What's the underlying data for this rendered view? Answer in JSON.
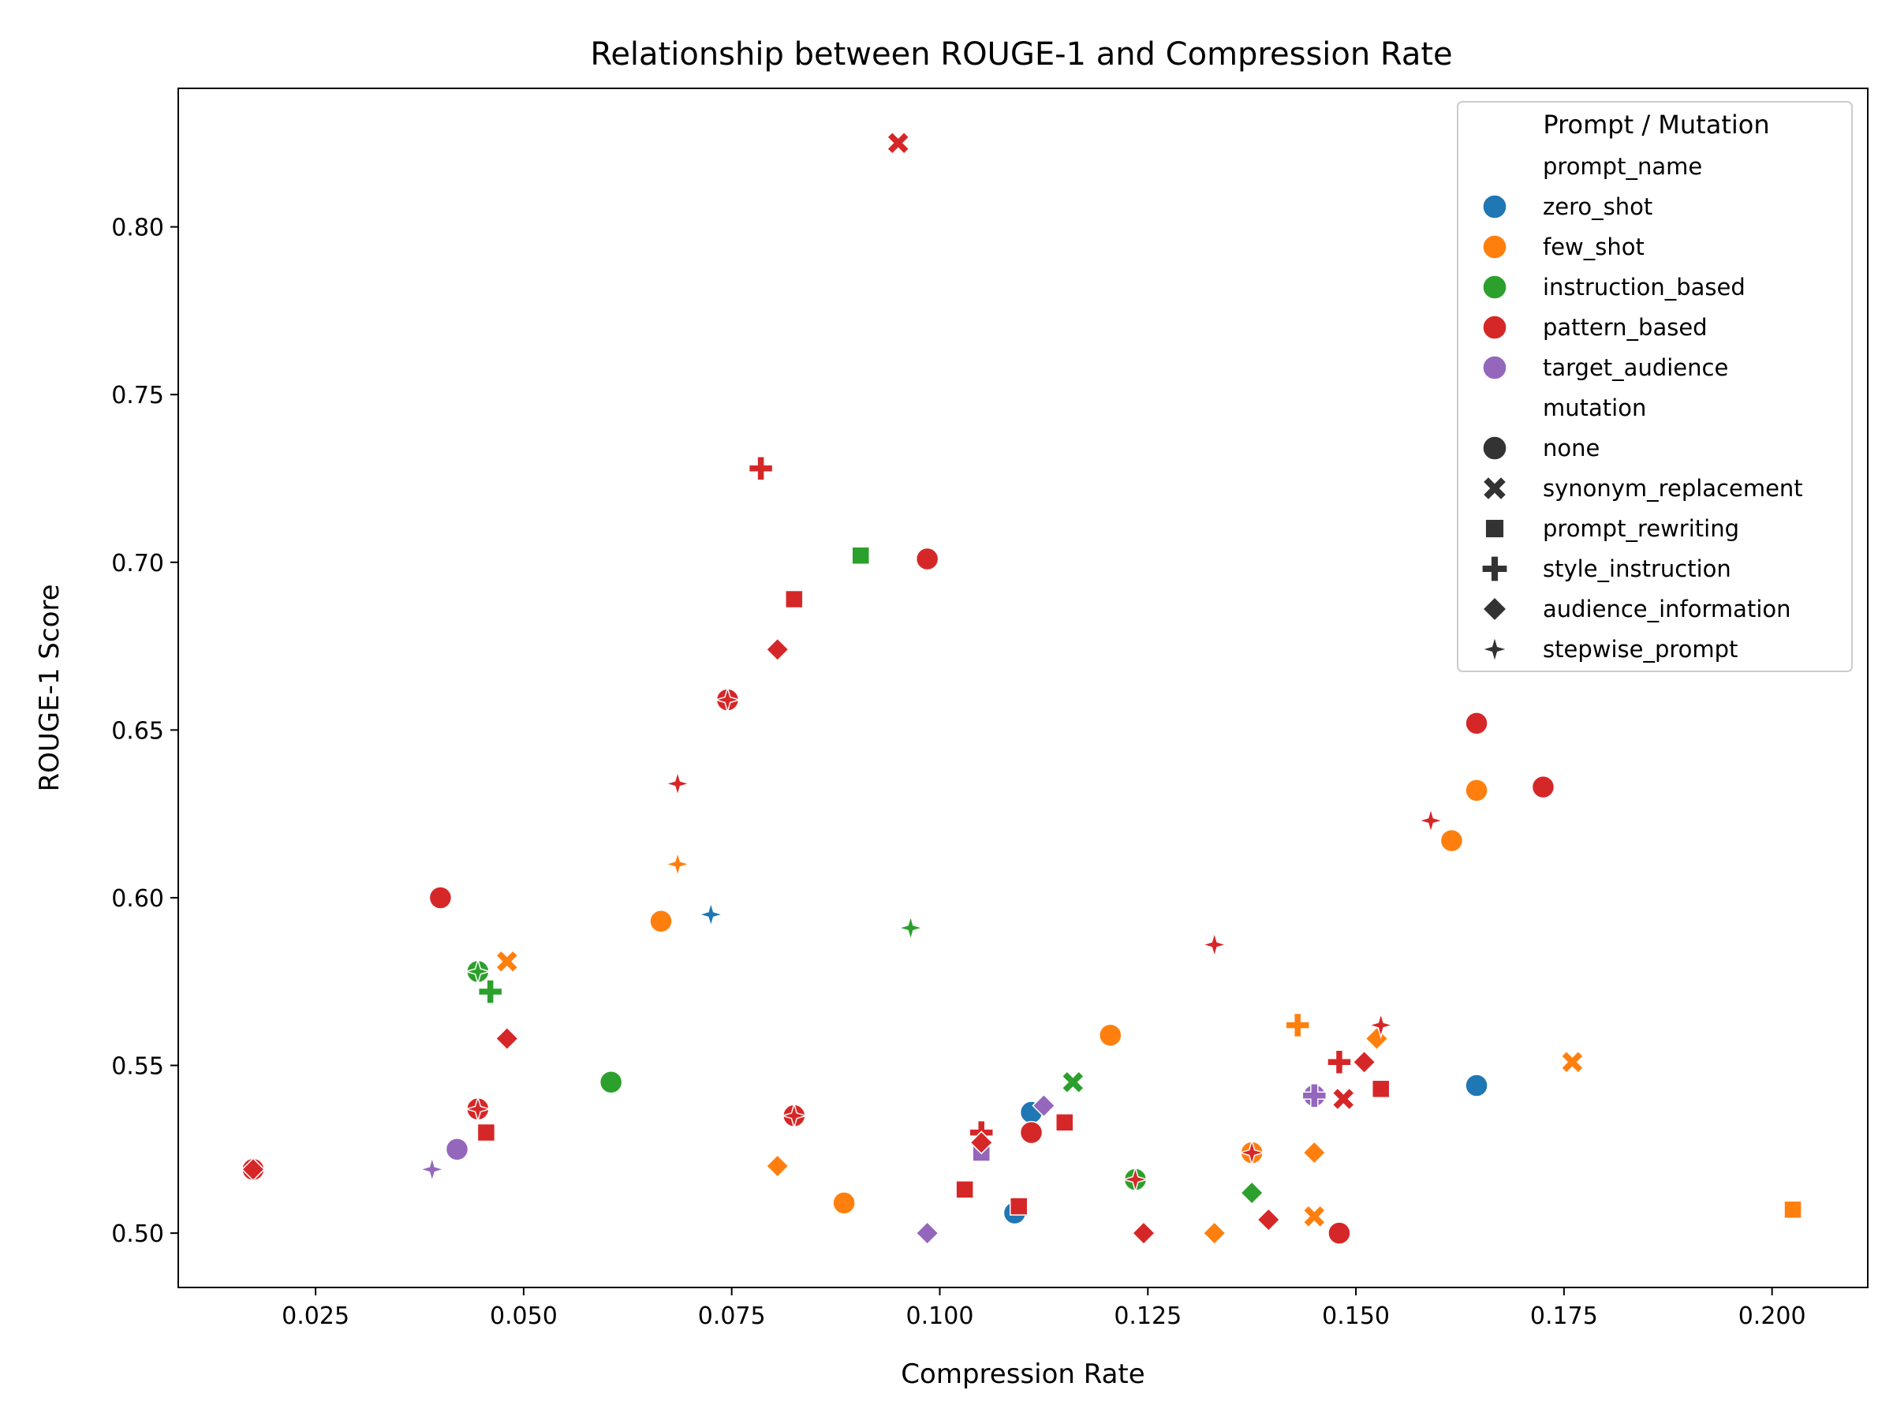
{
  "chart_data": {
    "type": "scatter",
    "title": "Relationship between ROUGE-1 and Compression Rate",
    "xlabel": "Compression Rate",
    "ylabel": "ROUGE-1 Score",
    "xlim": [
      0.0085,
      0.2115
    ],
    "ylim": [
      0.4838,
      0.8413
    ],
    "xticks": [
      "0.025",
      "0.050",
      "0.075",
      "0.100",
      "0.125",
      "0.150",
      "0.175",
      "0.200"
    ],
    "yticks": [
      "0.50",
      "0.55",
      "0.60",
      "0.65",
      "0.70",
      "0.75",
      "0.80"
    ],
    "grid": false,
    "legend_position": "upper right",
    "legend": {
      "title": "Prompt / Mutation",
      "hue_heading": "prompt_name",
      "hue_entries": [
        {
          "name": "zero_shot",
          "color": "#1f77b4"
        },
        {
          "name": "few_shot",
          "color": "#ff7f0e"
        },
        {
          "name": "instruction_based",
          "color": "#2ca02c"
        },
        {
          "name": "pattern_based",
          "color": "#d62728"
        },
        {
          "name": "target_audience",
          "color": "#9467bd"
        }
      ],
      "style_heading": "mutation",
      "style_entries": [
        {
          "name": "none",
          "marker": "circle"
        },
        {
          "name": "synonym_replacement",
          "marker": "x"
        },
        {
          "name": "prompt_rewriting",
          "marker": "square"
        },
        {
          "name": "style_instruction",
          "marker": "plus"
        },
        {
          "name": "audience_information",
          "marker": "diamond"
        },
        {
          "name": "stepwise_prompt",
          "marker": "star"
        }
      ]
    },
    "points": [
      {
        "x": 0.095,
        "y": 0.825,
        "prompt": "pattern_based",
        "mutation": "synonym_replacement"
      },
      {
        "x": 0.0785,
        "y": 0.728,
        "prompt": "pattern_based",
        "mutation": "style_instruction"
      },
      {
        "x": 0.0905,
        "y": 0.702,
        "prompt": "instruction_based",
        "mutation": "prompt_rewriting"
      },
      {
        "x": 0.0985,
        "y": 0.701,
        "prompt": "pattern_based",
        "mutation": "none"
      },
      {
        "x": 0.0825,
        "y": 0.689,
        "prompt": "pattern_based",
        "mutation": "prompt_rewriting"
      },
      {
        "x": 0.0805,
        "y": 0.674,
        "prompt": "pattern_based",
        "mutation": "audience_information"
      },
      {
        "x": 0.0745,
        "y": 0.659,
        "prompt": "pattern_based",
        "mutation": "none"
      },
      {
        "x": 0.0745,
        "y": 0.659,
        "prompt": "pattern_based",
        "mutation": "stepwise_prompt"
      },
      {
        "x": 0.0685,
        "y": 0.634,
        "prompt": "pattern_based",
        "mutation": "stepwise_prompt"
      },
      {
        "x": 0.0685,
        "y": 0.61,
        "prompt": "few_shot",
        "mutation": "stepwise_prompt"
      },
      {
        "x": 0.04,
        "y": 0.6,
        "prompt": "pattern_based",
        "mutation": "none"
      },
      {
        "x": 0.0725,
        "y": 0.595,
        "prompt": "zero_shot",
        "mutation": "stepwise_prompt"
      },
      {
        "x": 0.0665,
        "y": 0.593,
        "prompt": "few_shot",
        "mutation": "none"
      },
      {
        "x": 0.0965,
        "y": 0.591,
        "prompt": "instruction_based",
        "mutation": "stepwise_prompt"
      },
      {
        "x": 0.048,
        "y": 0.581,
        "prompt": "few_shot",
        "mutation": "synonym_replacement"
      },
      {
        "x": 0.0445,
        "y": 0.578,
        "prompt": "instruction_based",
        "mutation": "none"
      },
      {
        "x": 0.0445,
        "y": 0.578,
        "prompt": "instruction_based",
        "mutation": "stepwise_prompt"
      },
      {
        "x": 0.046,
        "y": 0.572,
        "prompt": "instruction_based",
        "mutation": "style_instruction"
      },
      {
        "x": 0.048,
        "y": 0.558,
        "prompt": "pattern_based",
        "mutation": "audience_information"
      },
      {
        "x": 0.0605,
        "y": 0.545,
        "prompt": "instruction_based",
        "mutation": "none"
      },
      {
        "x": 0.0445,
        "y": 0.537,
        "prompt": "pattern_based",
        "mutation": "none"
      },
      {
        "x": 0.0445,
        "y": 0.537,
        "prompt": "pattern_based",
        "mutation": "stepwise_prompt"
      },
      {
        "x": 0.0455,
        "y": 0.53,
        "prompt": "pattern_based",
        "mutation": "prompt_rewriting"
      },
      {
        "x": 0.042,
        "y": 0.525,
        "prompt": "target_audience",
        "mutation": "none"
      },
      {
        "x": 0.039,
        "y": 0.519,
        "prompt": "target_audience",
        "mutation": "stepwise_prompt"
      },
      {
        "x": 0.0175,
        "y": 0.519,
        "prompt": "pattern_based",
        "mutation": "none"
      },
      {
        "x": 0.0175,
        "y": 0.519,
        "prompt": "pattern_based",
        "mutation": "audience_information"
      },
      {
        "x": 0.0825,
        "y": 0.535,
        "prompt": "pattern_based",
        "mutation": "none"
      },
      {
        "x": 0.0825,
        "y": 0.535,
        "prompt": "pattern_based",
        "mutation": "stepwise_prompt"
      },
      {
        "x": 0.0805,
        "y": 0.52,
        "prompt": "few_shot",
        "mutation": "audience_information"
      },
      {
        "x": 0.0885,
        "y": 0.509,
        "prompt": "few_shot",
        "mutation": "none"
      },
      {
        "x": 0.0985,
        "y": 0.5,
        "prompt": "target_audience",
        "mutation": "audience_information"
      },
      {
        "x": 0.103,
        "y": 0.513,
        "prompt": "pattern_based",
        "mutation": "prompt_rewriting"
      },
      {
        "x": 0.105,
        "y": 0.53,
        "prompt": "pattern_based",
        "mutation": "style_instruction"
      },
      {
        "x": 0.105,
        "y": 0.524,
        "prompt": "target_audience",
        "mutation": "prompt_rewriting"
      },
      {
        "x": 0.105,
        "y": 0.527,
        "prompt": "pattern_based",
        "mutation": "audience_information"
      },
      {
        "x": 0.109,
        "y": 0.506,
        "prompt": "zero_shot",
        "mutation": "none"
      },
      {
        "x": 0.1095,
        "y": 0.508,
        "prompt": "pattern_based",
        "mutation": "prompt_rewriting"
      },
      {
        "x": 0.111,
        "y": 0.536,
        "prompt": "zero_shot",
        "mutation": "none"
      },
      {
        "x": 0.111,
        "y": 0.53,
        "prompt": "pattern_based",
        "mutation": "none"
      },
      {
        "x": 0.1125,
        "y": 0.538,
        "prompt": "target_audience",
        "mutation": "audience_information"
      },
      {
        "x": 0.115,
        "y": 0.533,
        "prompt": "pattern_based",
        "mutation": "prompt_rewriting"
      },
      {
        "x": 0.116,
        "y": 0.545,
        "prompt": "instruction_based",
        "mutation": "synonym_replacement"
      },
      {
        "x": 0.1205,
        "y": 0.559,
        "prompt": "few_shot",
        "mutation": "none"
      },
      {
        "x": 0.1235,
        "y": 0.516,
        "prompt": "instruction_based",
        "mutation": "none"
      },
      {
        "x": 0.1235,
        "y": 0.516,
        "prompt": "pattern_based",
        "mutation": "stepwise_prompt"
      },
      {
        "x": 0.1245,
        "y": 0.5,
        "prompt": "pattern_based",
        "mutation": "audience_information"
      },
      {
        "x": 0.133,
        "y": 0.586,
        "prompt": "pattern_based",
        "mutation": "stepwise_prompt"
      },
      {
        "x": 0.133,
        "y": 0.5,
        "prompt": "few_shot",
        "mutation": "audience_information"
      },
      {
        "x": 0.1375,
        "y": 0.524,
        "prompt": "few_shot",
        "mutation": "none"
      },
      {
        "x": 0.1375,
        "y": 0.524,
        "prompt": "pattern_based",
        "mutation": "stepwise_prompt"
      },
      {
        "x": 0.1375,
        "y": 0.512,
        "prompt": "instruction_based",
        "mutation": "audience_information"
      },
      {
        "x": 0.1395,
        "y": 0.504,
        "prompt": "pattern_based",
        "mutation": "audience_information"
      },
      {
        "x": 0.143,
        "y": 0.562,
        "prompt": "few_shot",
        "mutation": "style_instruction"
      },
      {
        "x": 0.145,
        "y": 0.541,
        "prompt": "target_audience",
        "mutation": "none"
      },
      {
        "x": 0.145,
        "y": 0.541,
        "prompt": "target_audience",
        "mutation": "style_instruction"
      },
      {
        "x": 0.145,
        "y": 0.524,
        "prompt": "few_shot",
        "mutation": "audience_information"
      },
      {
        "x": 0.145,
        "y": 0.505,
        "prompt": "few_shot",
        "mutation": "synonym_replacement"
      },
      {
        "x": 0.148,
        "y": 0.5,
        "prompt": "pattern_based",
        "mutation": "none"
      },
      {
        "x": 0.148,
        "y": 0.551,
        "prompt": "pattern_based",
        "mutation": "style_instruction"
      },
      {
        "x": 0.1485,
        "y": 0.54,
        "prompt": "pattern_based",
        "mutation": "synonym_replacement"
      },
      {
        "x": 0.151,
        "y": 0.551,
        "prompt": "pattern_based",
        "mutation": "audience_information"
      },
      {
        "x": 0.1525,
        "y": 0.558,
        "prompt": "few_shot",
        "mutation": "audience_information"
      },
      {
        "x": 0.153,
        "y": 0.562,
        "prompt": "pattern_based",
        "mutation": "stepwise_prompt"
      },
      {
        "x": 0.153,
        "y": 0.543,
        "prompt": "pattern_based",
        "mutation": "prompt_rewriting"
      },
      {
        "x": 0.159,
        "y": 0.623,
        "prompt": "pattern_based",
        "mutation": "stepwise_prompt"
      },
      {
        "x": 0.1615,
        "y": 0.617,
        "prompt": "few_shot",
        "mutation": "none"
      },
      {
        "x": 0.1645,
        "y": 0.652,
        "prompt": "pattern_based",
        "mutation": "none"
      },
      {
        "x": 0.1645,
        "y": 0.632,
        "prompt": "few_shot",
        "mutation": "none"
      },
      {
        "x": 0.1645,
        "y": 0.544,
        "prompt": "zero_shot",
        "mutation": "none"
      },
      {
        "x": 0.1725,
        "y": 0.633,
        "prompt": "pattern_based",
        "mutation": "none"
      },
      {
        "x": 0.176,
        "y": 0.551,
        "prompt": "few_shot",
        "mutation": "synonym_replacement"
      },
      {
        "x": 0.2025,
        "y": 0.507,
        "prompt": "few_shot",
        "mutation": "prompt_rewriting"
      }
    ]
  }
}
